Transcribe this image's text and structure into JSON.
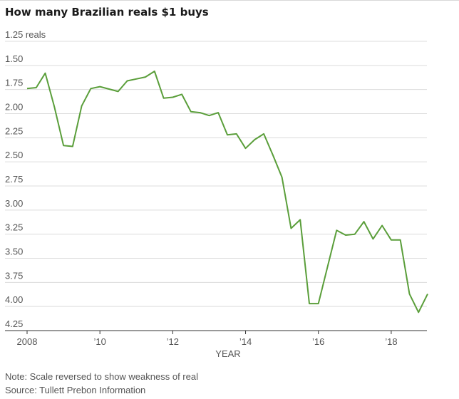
{
  "title": "How many Brazilian reals $1 buys",
  "note": "Note: Scale reversed to show weakness of real",
  "source": "Source: Tullett Prebon Information",
  "colors": {
    "line": "#5a9e3a",
    "grid": "#dcdcdc",
    "axis": "#333333",
    "text": "#555555"
  },
  "chart_data": {
    "type": "line",
    "title": "How many Brazilian reals $1 buys",
    "xlabel": "YEAR",
    "ylabel": "",
    "y_reversed": true,
    "ylim": [
      1.25,
      4.25
    ],
    "xlim": [
      2008,
      2019
    ],
    "y_ticks": [
      {
        "value": 1.25,
        "label": "1.25 reals"
      },
      {
        "value": 1.5,
        "label": "1.50"
      },
      {
        "value": 1.75,
        "label": "1.75"
      },
      {
        "value": 2.0,
        "label": "2.00"
      },
      {
        "value": 2.25,
        "label": "2.25"
      },
      {
        "value": 2.5,
        "label": "2.50"
      },
      {
        "value": 2.75,
        "label": "2.75"
      },
      {
        "value": 3.0,
        "label": "3.00"
      },
      {
        "value": 3.25,
        "label": "3.25"
      },
      {
        "value": 3.5,
        "label": "3.50"
      },
      {
        "value": 3.75,
        "label": "3.75"
      },
      {
        "value": 4.0,
        "label": "4.00"
      },
      {
        "value": 4.25,
        "label": "4.25"
      }
    ],
    "x_ticks": [
      {
        "value": 2008,
        "label": "2008"
      },
      {
        "value": 2010,
        "label": "’10"
      },
      {
        "value": 2012,
        "label": "’12"
      },
      {
        "value": 2014,
        "label": "’14"
      },
      {
        "value": 2016,
        "label": "’16"
      },
      {
        "value": 2018,
        "label": "’18"
      }
    ],
    "grid": true,
    "series": [
      {
        "points": [
          [
            2008.0,
            1.74
          ],
          [
            2008.25,
            1.73
          ],
          [
            2008.5,
            1.58
          ],
          [
            2008.75,
            1.93
          ],
          [
            2009.0,
            2.33
          ],
          [
            2009.25,
            2.34
          ],
          [
            2009.5,
            1.92
          ],
          [
            2009.75,
            1.74
          ],
          [
            2010.0,
            1.72
          ],
          [
            2010.5,
            1.77
          ],
          [
            2010.75,
            1.66
          ],
          [
            2011.0,
            1.64
          ],
          [
            2011.25,
            1.62
          ],
          [
            2011.5,
            1.56
          ],
          [
            2011.75,
            1.84
          ],
          [
            2012.0,
            1.83
          ],
          [
            2012.25,
            1.8
          ],
          [
            2012.5,
            1.98
          ],
          [
            2012.75,
            1.99
          ],
          [
            2013.0,
            2.02
          ],
          [
            2013.25,
            1.99
          ],
          [
            2013.5,
            2.22
          ],
          [
            2013.75,
            2.21
          ],
          [
            2014.0,
            2.36
          ],
          [
            2014.25,
            2.27
          ],
          [
            2014.5,
            2.21
          ],
          [
            2014.75,
            2.43
          ],
          [
            2015.0,
            2.66
          ],
          [
            2015.25,
            3.19
          ],
          [
            2015.5,
            3.1
          ],
          [
            2015.75,
            3.97
          ],
          [
            2016.0,
            3.97
          ],
          [
            2016.5,
            3.21
          ],
          [
            2016.75,
            3.26
          ],
          [
            2017.0,
            3.25
          ],
          [
            2017.25,
            3.12
          ],
          [
            2017.5,
            3.3
          ],
          [
            2017.75,
            3.16
          ],
          [
            2018.0,
            3.31
          ],
          [
            2018.25,
            3.31
          ],
          [
            2018.5,
            3.87
          ],
          [
            2018.75,
            4.06
          ],
          [
            2019.0,
            3.87
          ]
        ]
      }
    ]
  }
}
